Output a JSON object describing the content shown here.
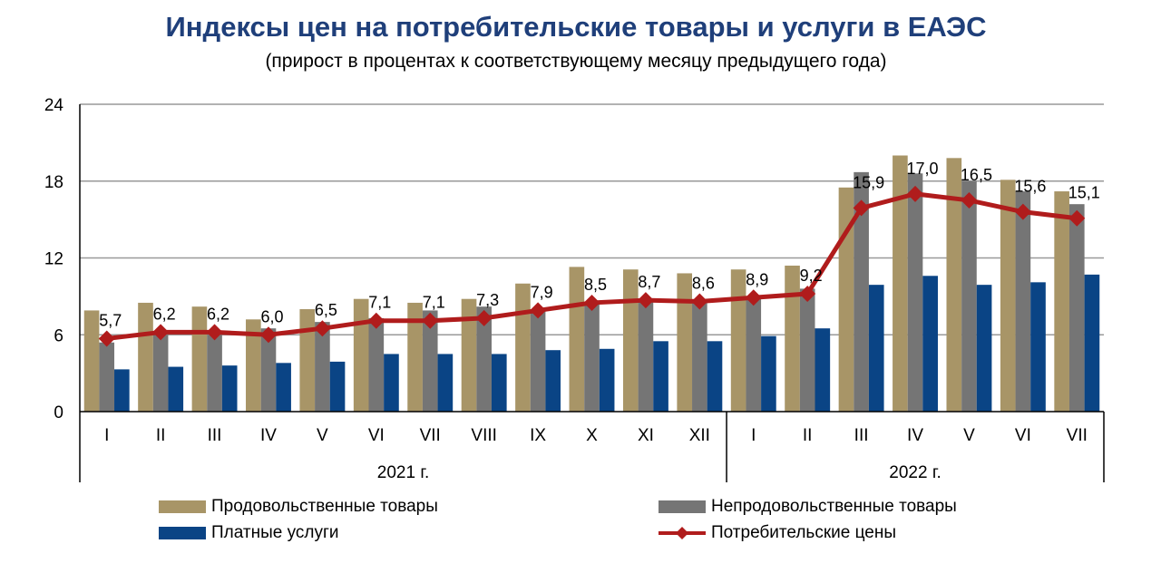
{
  "chart_data": {
    "type": "bar",
    "title": "Индексы цен на потребительские товары и услуги в ЕАЭС",
    "subtitle": "(прирост в процентах к соответствующему месяцу предыдущего года)",
    "categories": [
      "I",
      "II",
      "III",
      "IV",
      "V",
      "VI",
      "VII",
      "VIII",
      "IX",
      "X",
      "XI",
      "XII",
      "I",
      "II",
      "III",
      "IV",
      "V",
      "VI",
      "VII"
    ],
    "groups": [
      {
        "label": "2021 г.",
        "count": 12
      },
      {
        "label": "2022 г.",
        "count": 7
      }
    ],
    "ylim": [
      0,
      24
    ],
    "yticks": [
      0,
      6,
      12,
      18,
      24
    ],
    "grid": true,
    "legend_position": "bottom",
    "series": [
      {
        "name": "Продовольственные товары",
        "type": "bar",
        "color": "#a89567",
        "values": [
          7.9,
          8.5,
          8.2,
          7.2,
          8.0,
          8.8,
          8.5,
          8.8,
          10.0,
          11.3,
          11.1,
          10.8,
          11.1,
          11.4,
          17.5,
          20.0,
          19.8,
          18.1,
          17.2
        ]
      },
      {
        "name": "Непродовольственные товары",
        "type": "bar",
        "color": "#757575",
        "values": [
          5.4,
          6.0,
          6.0,
          6.5,
          7.0,
          7.3,
          7.9,
          8.2,
          8.0,
          8.5,
          8.7,
          8.6,
          9.0,
          9.6,
          18.7,
          18.6,
          18.0,
          17.2,
          16.2
        ]
      },
      {
        "name": "Платные услуги",
        "type": "bar",
        "color": "#0a4485",
        "values": [
          3.3,
          3.5,
          3.6,
          3.8,
          3.9,
          4.5,
          4.5,
          4.5,
          4.8,
          4.9,
          5.5,
          5.5,
          5.9,
          6.5,
          9.9,
          10.6,
          9.9,
          10.1,
          10.7
        ]
      },
      {
        "name": "Потребительские цены",
        "type": "line",
        "color": "#b01c1c",
        "values": [
          5.7,
          6.2,
          6.2,
          6.0,
          6.5,
          7.1,
          7.1,
          7.3,
          7.9,
          8.5,
          8.7,
          8.6,
          8.9,
          9.2,
          15.9,
          17.0,
          16.5,
          15.6,
          15.1
        ],
        "labels": [
          "5,7",
          "6,2",
          "6,2",
          "6,0",
          "6,5",
          "7,1",
          "7,1",
          "7,3",
          "7,9",
          "8,5",
          "8,7",
          "8,6",
          "8,9",
          "9,2",
          "15,9",
          "17,0",
          "16,5",
          "15,6",
          "15,1"
        ]
      }
    ]
  }
}
